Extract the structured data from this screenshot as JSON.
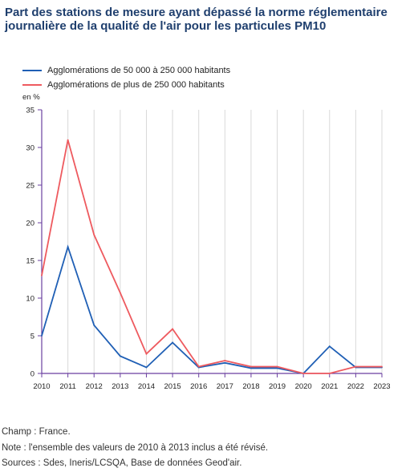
{
  "title": "Part des stations de mesure ayant dépassé la norme réglementaire journalière de la qualité de l'air pour les particules PM10",
  "unit_label": "en %",
  "notes": [
    "Champ : France.",
    "Note : l'ensemble des valeurs de 2010 à 2013 inclus a été révisé.",
    "Sources : Sdes, Ineris/LCSQA, Base de données Geod'air."
  ],
  "chart_data": {
    "type": "line",
    "title": "Part des stations de mesure ayant dépassé la norme réglementaire journalière de la qualité de l'air pour les particules PM10",
    "xlabel": "",
    "ylabel": "en %",
    "x": [
      "2010",
      "2011",
      "2012",
      "2013",
      "2014",
      "2015",
      "2016",
      "2017",
      "2018",
      "2019",
      "2020",
      "2021",
      "2022",
      "2023"
    ],
    "ylim": [
      0,
      35
    ],
    "yticks": [
      0,
      5,
      10,
      15,
      20,
      25,
      30,
      35
    ],
    "grid": "vertical",
    "legend_position": "top-left",
    "series": [
      {
        "name": "Agglomérations de 50 000 à 250 000 habitants",
        "color": "#1f5fb5",
        "values": [
          5,
          16.8,
          6.4,
          2.3,
          0.8,
          4.1,
          0.8,
          1.4,
          0.7,
          0.7,
          0,
          3.6,
          0.8,
          0.8
        ]
      },
      {
        "name": "Agglomérations de plus de 250 000 habitants",
        "color": "#ee5a5f",
        "values": [
          13,
          31,
          18.4,
          10.7,
          2.6,
          5.9,
          0.9,
          1.7,
          0.9,
          0.9,
          0,
          0,
          0.9,
          0.9
        ]
      }
    ]
  }
}
